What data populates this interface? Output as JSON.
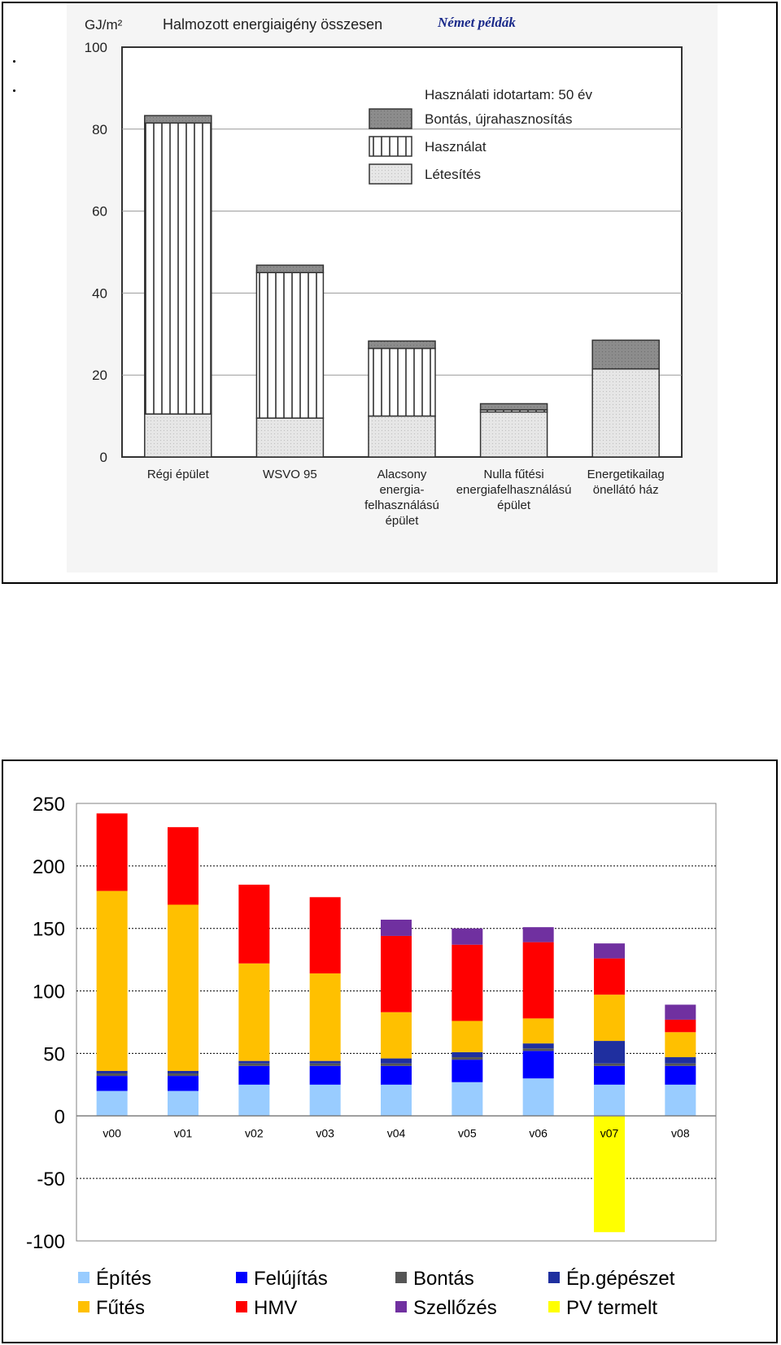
{
  "charts": [
    {
      "type": "bar",
      "stacked": true,
      "title": "Halmozott energiaigény összesen",
      "subtitle": "Német példák",
      "ylabel": "GJ/m²",
      "ylim": [
        0,
        100
      ],
      "yticks": [
        0,
        20,
        40,
        60,
        80,
        100
      ],
      "grid": true,
      "legend_title": "Használati idotartam: 50 év",
      "legend_position": "top-right",
      "categories": [
        [
          "Régi épület"
        ],
        [
          "WSVO 95"
        ],
        [
          "Alacsony",
          "energia-",
          "felhasználású",
          "épület"
        ],
        [
          "Nulla fűtési",
          "energiafelhasználású",
          "épület"
        ],
        [
          "Energetikailag",
          "önellátó ház"
        ]
      ],
      "series": [
        {
          "name": "Létesítés",
          "color": "#e4e4e4",
          "pattern": "dots",
          "values": [
            10.5,
            9.5,
            10,
            11,
            21.5
          ]
        },
        {
          "name": "Használat",
          "color": "#ffffff",
          "pattern": "vertical-lines",
          "values": [
            71,
            35.5,
            16.5,
            0.5,
            0
          ]
        },
        {
          "name": "Bontás, újrahasznosítás",
          "color": "#8a8a8a",
          "pattern": "solid",
          "values": [
            1.8,
            1.8,
            1.8,
            1.5,
            7
          ]
        }
      ]
    },
    {
      "type": "bar",
      "stacked": true,
      "ylim": [
        -100,
        250
      ],
      "yticks": [
        -100,
        -50,
        0,
        50,
        100,
        150,
        200,
        250
      ],
      "grid": true,
      "legend_position": "bottom",
      "categories": [
        "v00",
        "v01",
        "v02",
        "v03",
        "v04",
        "v05",
        "v06",
        "v07",
        "v08"
      ],
      "series": [
        {
          "name": "Építés",
          "color": "#99ccff",
          "values": [
            20,
            20,
            25,
            25,
            25,
            27,
            30,
            25,
            25
          ]
        },
        {
          "name": "Felújítás",
          "color": "#0000ff",
          "values": [
            12,
            12,
            15,
            15,
            15,
            18,
            22,
            15,
            15
          ]
        },
        {
          "name": "Bontás",
          "color": "#555555",
          "values": [
            2,
            2,
            2,
            2,
            2,
            2,
            2,
            2,
            2
          ]
        },
        {
          "name": "Ép.gépészet",
          "color": "#1f2f9f",
          "values": [
            2,
            2,
            2,
            2,
            4,
            4,
            4,
            18,
            5
          ]
        },
        {
          "name": "Fűtés",
          "color": "#ffc000",
          "values": [
            144,
            133,
            78,
            70,
            37,
            25,
            20,
            37,
            20
          ]
        },
        {
          "name": "HMV",
          "color": "#ff0000",
          "values": [
            62,
            62,
            63,
            61,
            61,
            61,
            61,
            29,
            10
          ]
        },
        {
          "name": "Szellőzés",
          "color": "#7030a0",
          "values": [
            0,
            0,
            0,
            0,
            13,
            13,
            12,
            12,
            12
          ]
        },
        {
          "name": "PV termelt",
          "color": "#ffff00",
          "values": [
            0,
            0,
            0,
            0,
            0,
            0,
            0,
            -93,
            0
          ]
        }
      ]
    }
  ]
}
